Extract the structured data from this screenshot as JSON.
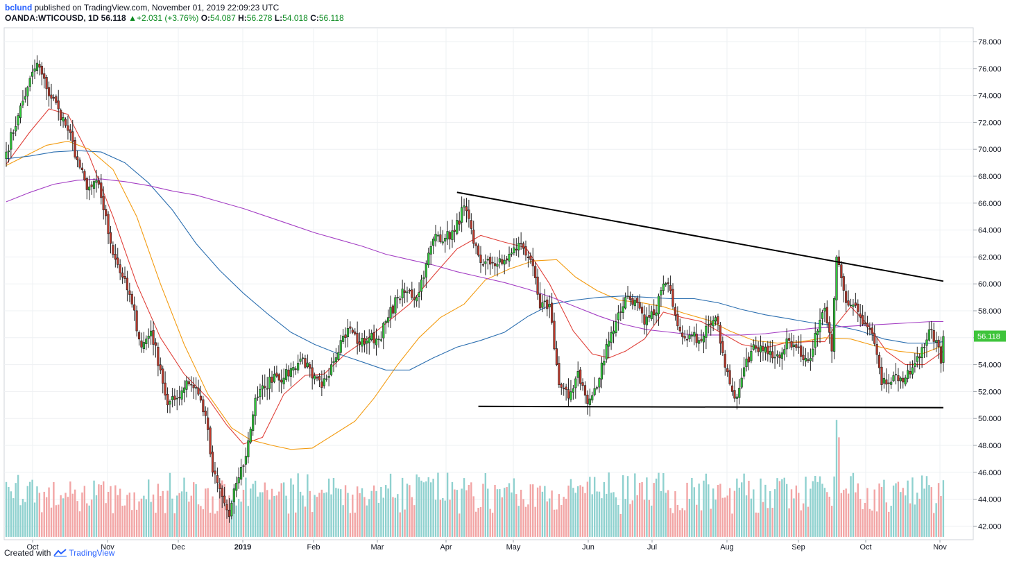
{
  "header": {
    "user": "bclund",
    "published_text": "published on TradingView.com, November 01, 2019 22:09:23 UTC",
    "symbol": "OANDA:WTICOUSD, 1D",
    "last": "56.118",
    "change": "+2.031 (+3.76%)",
    "o_label": "O:",
    "o_value": "54.087",
    "h_label": "H:",
    "h_value": "56.278",
    "l_label": "L:",
    "l_value": "54.018",
    "c_label": "C:",
    "c_value": "56.118"
  },
  "footer": {
    "created_with": "Created with",
    "brand": "TradingView"
  },
  "colors": {
    "up": "#2ecc3a",
    "down": "#c0392b",
    "vol_up": "#8fd1cf",
    "vol_down": "#f2a5a5",
    "ma_red": "#e0413a",
    "ma_orange": "#f39c12",
    "ma_blue": "#2c6fb0",
    "ma_purple": "#a43fc4",
    "price_tag": "#3ec43b"
  },
  "chart_data": {
    "type": "candlestick",
    "title": "",
    "current_price_label": "56.118",
    "y_ticks": [
      "78.000",
      "76.000",
      "74.000",
      "72.000",
      "70.000",
      "68.000",
      "66.000",
      "64.000",
      "62.000",
      "60.000",
      "58.000",
      "56.000",
      "54.000",
      "52.000",
      "50.000",
      "48.000",
      "46.000",
      "44.000",
      "42.000"
    ],
    "x_ticks": [
      "Oct",
      "Nov",
      "Dec",
      "2019",
      "Feb",
      "Mar",
      "Apr",
      "May",
      "Jun",
      "Jul",
      "Aug",
      "Sep",
      "Oct",
      "Nov"
    ],
    "ylim": [
      41.0,
      79.0
    ],
    "anchors": [
      {
        "x": 0,
        "y": 69.8
      },
      {
        "x": 5,
        "y": 72.5
      },
      {
        "x": 9,
        "y": 74.6
      },
      {
        "x": 13,
        "y": 76.4
      },
      {
        "x": 17,
        "y": 74.5
      },
      {
        "x": 22,
        "y": 73.0
      },
      {
        "x": 26,
        "y": 71.4
      },
      {
        "x": 30,
        "y": 69.2
      },
      {
        "x": 34,
        "y": 67.0
      },
      {
        "x": 39,
        "y": 67.4
      },
      {
        "x": 44,
        "y": 63.0
      },
      {
        "x": 49,
        "y": 60.5
      },
      {
        "x": 53,
        "y": 58.5
      },
      {
        "x": 57,
        "y": 55.3
      },
      {
        "x": 61,
        "y": 56.5
      },
      {
        "x": 65,
        "y": 53.6
      },
      {
        "x": 68,
        "y": 51.0
      },
      {
        "x": 72,
        "y": 51.5
      },
      {
        "x": 76,
        "y": 52.8
      },
      {
        "x": 80,
        "y": 52.3
      },
      {
        "x": 84,
        "y": 50.2
      },
      {
        "x": 87,
        "y": 46.0
      },
      {
        "x": 91,
        "y": 44.2
      },
      {
        "x": 94,
        "y": 42.7
      },
      {
        "x": 97,
        "y": 45.2
      },
      {
        "x": 101,
        "y": 47.2
      },
      {
        "x": 105,
        "y": 51.5
      },
      {
        "x": 109,
        "y": 52.3
      },
      {
        "x": 113,
        "y": 53.3
      },
      {
        "x": 117,
        "y": 53.0
      },
      {
        "x": 121,
        "y": 53.8
      },
      {
        "x": 125,
        "y": 54.5
      },
      {
        "x": 129,
        "y": 53.0
      },
      {
        "x": 133,
        "y": 52.3
      },
      {
        "x": 137,
        "y": 54.0
      },
      {
        "x": 141,
        "y": 55.8
      },
      {
        "x": 145,
        "y": 56.7
      },
      {
        "x": 149,
        "y": 55.5
      },
      {
        "x": 153,
        "y": 56.0
      },
      {
        "x": 157,
        "y": 55.9
      },
      {
        "x": 161,
        "y": 57.5
      },
      {
        "x": 165,
        "y": 59.0
      },
      {
        "x": 169,
        "y": 59.4
      },
      {
        "x": 173,
        "y": 59.0
      },
      {
        "x": 177,
        "y": 61.5
      },
      {
        "x": 181,
        "y": 63.7
      },
      {
        "x": 185,
        "y": 63.4
      },
      {
        "x": 189,
        "y": 63.9
      },
      {
        "x": 193,
        "y": 65.8
      },
      {
        "x": 197,
        "y": 63.0
      },
      {
        "x": 201,
        "y": 61.4
      },
      {
        "x": 205,
        "y": 61.6
      },
      {
        "x": 209,
        "y": 61.5
      },
      {
        "x": 213,
        "y": 62.3
      },
      {
        "x": 217,
        "y": 63.0
      },
      {
        "x": 221,
        "y": 61.8
      },
      {
        "x": 225,
        "y": 58.2
      },
      {
        "x": 229,
        "y": 58.5
      },
      {
        "x": 233,
        "y": 52.5
      },
      {
        "x": 237,
        "y": 51.5
      },
      {
        "x": 241,
        "y": 53.5
      },
      {
        "x": 245,
        "y": 51.1
      },
      {
        "x": 249,
        "y": 52.3
      },
      {
        "x": 253,
        "y": 55.5
      },
      {
        "x": 257,
        "y": 57.2
      },
      {
        "x": 261,
        "y": 59.0
      },
      {
        "x": 265,
        "y": 58.8
      },
      {
        "x": 269,
        "y": 57.0
      },
      {
        "x": 273,
        "y": 57.7
      },
      {
        "x": 277,
        "y": 60.0
      },
      {
        "x": 280,
        "y": 59.5
      },
      {
        "x": 284,
        "y": 56.5
      },
      {
        "x": 288,
        "y": 56.2
      },
      {
        "x": 292,
        "y": 55.8
      },
      {
        "x": 296,
        "y": 57.0
      },
      {
        "x": 299,
        "y": 57.5
      },
      {
        "x": 303,
        "y": 53.8
      },
      {
        "x": 307,
        "y": 51.5
      },
      {
        "x": 310,
        "y": 53.0
      },
      {
        "x": 314,
        "y": 55.0
      },
      {
        "x": 318,
        "y": 55.4
      },
      {
        "x": 322,
        "y": 55.0
      },
      {
        "x": 326,
        "y": 54.5
      },
      {
        "x": 330,
        "y": 55.8
      },
      {
        "x": 334,
        "y": 55.3
      },
      {
        "x": 338,
        "y": 54.3
      },
      {
        "x": 342,
        "y": 56.5
      },
      {
        "x": 345,
        "y": 58.2
      },
      {
        "x": 348,
        "y": 55.0
      },
      {
        "x": 350,
        "y": 62.0
      },
      {
        "x": 354,
        "y": 58.6
      },
      {
        "x": 358,
        "y": 58.4
      },
      {
        "x": 361,
        "y": 57.0
      },
      {
        "x": 365,
        "y": 56.3
      },
      {
        "x": 369,
        "y": 52.5
      },
      {
        "x": 373,
        "y": 52.7
      },
      {
        "x": 377,
        "y": 53.0
      },
      {
        "x": 381,
        "y": 53.3
      },
      {
        "x": 385,
        "y": 54.5
      },
      {
        "x": 389,
        "y": 56.6
      },
      {
        "x": 392,
        "y": 55.8
      },
      {
        "x": 394,
        "y": 54.1
      },
      {
        "x": 395,
        "y": 56.1
      }
    ],
    "moving_averages": [
      {
        "color_key": "ma_red",
        "points": [
          [
            0,
            68.9
          ],
          [
            10,
            71.3
          ],
          [
            18,
            73.0
          ],
          [
            26,
            72.6
          ],
          [
            35,
            69.5
          ],
          [
            45,
            65.0
          ],
          [
            55,
            60.0
          ],
          [
            65,
            56.0
          ],
          [
            75,
            53.3
          ],
          [
            85,
            51.5
          ],
          [
            93,
            49.5
          ],
          [
            100,
            48.1
          ],
          [
            108,
            48.6
          ],
          [
            117,
            51.8
          ],
          [
            126,
            53.2
          ],
          [
            134,
            53.3
          ],
          [
            143,
            54.8
          ],
          [
            152,
            55.9
          ],
          [
            161,
            57.2
          ],
          [
            170,
            58.5
          ],
          [
            180,
            60.6
          ],
          [
            190,
            62.6
          ],
          [
            200,
            63.6
          ],
          [
            210,
            63.1
          ],
          [
            219,
            62.7
          ],
          [
            229,
            60.0
          ],
          [
            239,
            56.5
          ],
          [
            247,
            54.8
          ],
          [
            254,
            54.5
          ],
          [
            261,
            55.0
          ],
          [
            269,
            55.9
          ],
          [
            277,
            57.9
          ],
          [
            285,
            57.5
          ],
          [
            293,
            57.2
          ],
          [
            302,
            56.3
          ],
          [
            310,
            55.5
          ],
          [
            319,
            55.2
          ],
          [
            328,
            55.6
          ],
          [
            338,
            55.7
          ],
          [
            345,
            55.7
          ],
          [
            350,
            57.0
          ],
          [
            356,
            58.3
          ],
          [
            363,
            57.0
          ],
          [
            371,
            55.0
          ],
          [
            379,
            54.0
          ],
          [
            387,
            54.0
          ],
          [
            395,
            55.0
          ]
        ]
      },
      {
        "color_key": "ma_orange",
        "points": [
          [
            0,
            68.8
          ],
          [
            8,
            69.5
          ],
          [
            17,
            70.3
          ],
          [
            26,
            70.6
          ],
          [
            35,
            70.0
          ],
          [
            45,
            68.5
          ],
          [
            55,
            65.0
          ],
          [
            65,
            60.0
          ],
          [
            75,
            55.5
          ],
          [
            85,
            51.8
          ],
          [
            95,
            49.3
          ],
          [
            103,
            48.4
          ],
          [
            112,
            48.0
          ],
          [
            120,
            47.7
          ],
          [
            129,
            47.8
          ],
          [
            138,
            48.8
          ],
          [
            147,
            49.8
          ],
          [
            155,
            51.5
          ],
          [
            165,
            54.0
          ],
          [
            174,
            56.0
          ],
          [
            183,
            57.5
          ],
          [
            193,
            58.5
          ],
          [
            202,
            60.3
          ],
          [
            212,
            61.1
          ],
          [
            222,
            61.7
          ],
          [
            232,
            61.8
          ],
          [
            240,
            60.5
          ],
          [
            249,
            59.5
          ],
          [
            258,
            58.8
          ],
          [
            268,
            58.6
          ],
          [
            277,
            58.3
          ],
          [
            286,
            57.8
          ],
          [
            296,
            57.3
          ],
          [
            305,
            56.5
          ],
          [
            315,
            55.8
          ],
          [
            325,
            55.6
          ],
          [
            335,
            55.7
          ],
          [
            345,
            56.0
          ],
          [
            356,
            55.9
          ],
          [
            366,
            55.4
          ],
          [
            376,
            55.0
          ],
          [
            386,
            54.8
          ],
          [
            395,
            55.4
          ]
        ]
      },
      {
        "color_key": "ma_blue",
        "points": [
          [
            0,
            69.3
          ],
          [
            10,
            69.5
          ],
          [
            20,
            69.8
          ],
          [
            30,
            69.9
          ],
          [
            40,
            69.8
          ],
          [
            50,
            69.0
          ],
          [
            60,
            67.5
          ],
          [
            70,
            65.5
          ],
          [
            80,
            63.0
          ],
          [
            90,
            61.0
          ],
          [
            100,
            59.3
          ],
          [
            110,
            57.8
          ],
          [
            120,
            56.4
          ],
          [
            130,
            55.5
          ],
          [
            140,
            54.8
          ],
          [
            150,
            54.2
          ],
          [
            160,
            53.6
          ],
          [
            170,
            53.6
          ],
          [
            180,
            54.5
          ],
          [
            190,
            55.3
          ],
          [
            200,
            55.8
          ],
          [
            210,
            56.4
          ],
          [
            220,
            57.6
          ],
          [
            230,
            58.5
          ],
          [
            240,
            58.8
          ],
          [
            250,
            59.0
          ],
          [
            260,
            59.1
          ],
          [
            270,
            59.0
          ],
          [
            280,
            58.9
          ],
          [
            290,
            58.9
          ],
          [
            300,
            58.6
          ],
          [
            310,
            58.1
          ],
          [
            320,
            57.7
          ],
          [
            330,
            57.4
          ],
          [
            340,
            57.1
          ],
          [
            350,
            56.9
          ],
          [
            360,
            56.5
          ],
          [
            370,
            55.9
          ],
          [
            380,
            55.6
          ],
          [
            390,
            55.6
          ],
          [
            395,
            55.7
          ]
        ]
      },
      {
        "color_key": "ma_purple",
        "points": [
          [
            0,
            66.1
          ],
          [
            10,
            66.8
          ],
          [
            20,
            67.4
          ],
          [
            30,
            67.7
          ],
          [
            40,
            67.8
          ],
          [
            50,
            67.6
          ],
          [
            60,
            67.3
          ],
          [
            70,
            66.9
          ],
          [
            80,
            66.6
          ],
          [
            90,
            66.1
          ],
          [
            100,
            65.6
          ],
          [
            110,
            65.0
          ],
          [
            120,
            64.4
          ],
          [
            130,
            63.8
          ],
          [
            140,
            63.3
          ],
          [
            150,
            62.8
          ],
          [
            160,
            62.2
          ],
          [
            170,
            61.8
          ],
          [
            180,
            61.4
          ],
          [
            190,
            60.9
          ],
          [
            200,
            60.5
          ],
          [
            210,
            60.1
          ],
          [
            220,
            59.6
          ],
          [
            230,
            59.0
          ],
          [
            240,
            58.3
          ],
          [
            250,
            57.6
          ],
          [
            260,
            57.0
          ],
          [
            270,
            56.6
          ],
          [
            280,
            56.4
          ],
          [
            290,
            56.2
          ],
          [
            300,
            56.2
          ],
          [
            310,
            56.2
          ],
          [
            320,
            56.3
          ],
          [
            330,
            56.5
          ],
          [
            340,
            56.7
          ],
          [
            350,
            56.8
          ],
          [
            360,
            56.9
          ],
          [
            370,
            57.0
          ],
          [
            380,
            57.1
          ],
          [
            390,
            57.2
          ],
          [
            395,
            57.2
          ]
        ]
      }
    ],
    "trendlines": [
      {
        "name": "upper-resistance",
        "points": [
          [
            190,
            66.8
          ],
          [
            395,
            60.2
          ]
        ]
      },
      {
        "name": "lower-support",
        "points": [
          [
            199,
            50.9
          ],
          [
            395,
            50.8
          ]
        ]
      }
    ],
    "volume_spike": {
      "x": 350,
      "up": 49.9,
      "down": 48.6
    }
  }
}
